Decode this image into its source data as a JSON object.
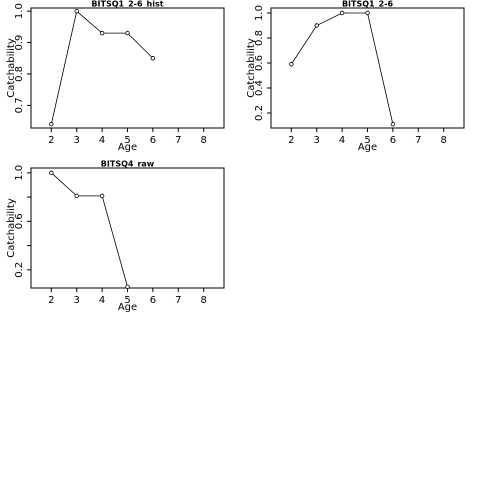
{
  "chart_data": [
    {
      "type": "line",
      "title": "BITSQ1_2-6_hist",
      "xlabel": "Age",
      "ylabel": "Catchability",
      "xlim": [
        1.2,
        8.8
      ],
      "ylim": [
        0.628,
        1.01
      ],
      "xticks": [
        2,
        3,
        4,
        5,
        6,
        7,
        8
      ],
      "yticks": [
        0.7,
        0.8,
        0.9,
        1.0
      ],
      "ytick_labels": [
        "0.7",
        "0.8",
        "0.9",
        "1.0"
      ],
      "series": [
        {
          "x": [
            2,
            3,
            4,
            5,
            6
          ],
          "y": [
            0.64,
            1.0,
            0.93,
            0.93,
            0.85
          ]
        }
      ]
    },
    {
      "type": "line",
      "title": "BITSQ1_2-6",
      "xlabel": "Age",
      "ylabel": "Catchability",
      "xlim": [
        1.2,
        8.8
      ],
      "ylim": [
        0.08,
        1.04
      ],
      "xticks": [
        2,
        3,
        4,
        5,
        6,
        7,
        8
      ],
      "yticks": [
        0.2,
        0.4,
        0.6,
        0.8,
        1.0
      ],
      "ytick_labels": [
        "0.2",
        "0.4",
        "0.6",
        "0.8",
        "1.0"
      ],
      "series": [
        {
          "x": [
            2,
            3,
            4,
            5,
            6
          ],
          "y": [
            0.59,
            0.9,
            1.0,
            1.0,
            0.11
          ]
        }
      ]
    },
    {
      "type": "line",
      "title": "BITSQ4_raw",
      "xlabel": "Age",
      "ylabel": "Catchability",
      "xlim": [
        1.2,
        8.8
      ],
      "ylim": [
        0.05,
        1.04
      ],
      "xticks": [
        2,
        3,
        4,
        5,
        6,
        7,
        8
      ],
      "yticks": [
        0.2,
        0.4,
        0.6,
        0.8,
        1.0
      ],
      "ytick_labels": [
        "0.2",
        "",
        "0.6",
        "",
        "1.0"
      ],
      "series": [
        {
          "x": [
            2,
            3,
            4,
            5
          ],
          "y": [
            1.0,
            0.81,
            0.81,
            0.06
          ]
        }
      ]
    }
  ]
}
